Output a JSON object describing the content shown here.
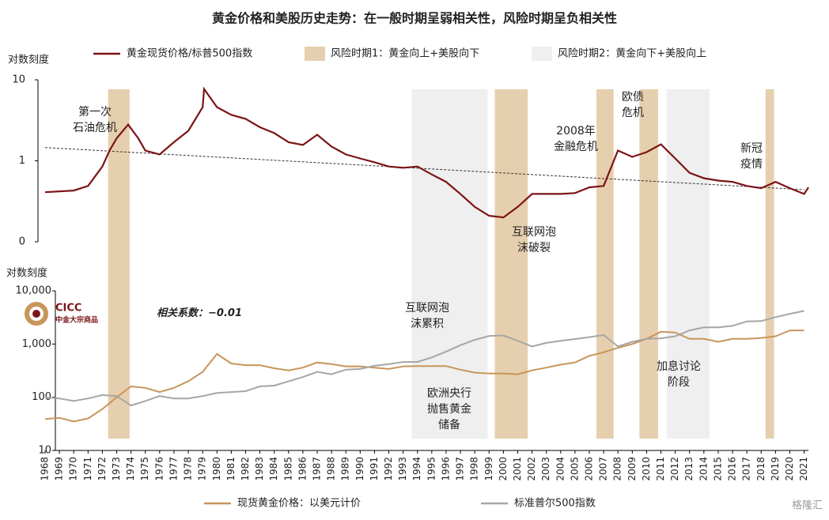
{
  "title": "黄金价格和美股历史走势：在一般时期呈弱相关性，风险时期呈负相关性",
  "logo": {
    "name": "CICC",
    "sub": "中金大宗商品"
  },
  "watermark": "格隆汇",
  "chart_data": [
    {
      "type": "line",
      "ylabel": "对数刻度",
      "log": true,
      "ylim": [
        0.1,
        10
      ],
      "yticks": [
        {
          "value": 0.1,
          "label": "0"
        },
        1,
        10
      ],
      "xlim": [
        1968,
        2021.3
      ],
      "x": [
        1968,
        1970,
        1971,
        1972,
        1972.5,
        1973,
        1973.8,
        1974.5,
        1975,
        1976,
        1977,
        1978,
        1979,
        1979.1,
        1980,
        1981,
        1982,
        1983,
        1984,
        1985,
        1986,
        1987,
        1988,
        1989,
        1990,
        1991,
        1992,
        1993,
        1994,
        1995,
        1996,
        1997,
        1998,
        1999,
        2000,
        2001,
        2002,
        2003,
        2004,
        2005,
        2006,
        2007,
        2008,
        2009,
        2010,
        2011,
        2012,
        2013,
        2014,
        2015,
        2016,
        2017,
        2018,
        2019,
        2020,
        2021,
        2021.3
      ],
      "series": [
        {
          "name": "黄金现货价格/标普500指数",
          "color": "#7b1416",
          "values": [
            0.41,
            0.43,
            0.49,
            0.85,
            1.34,
            1.9,
            2.8,
            1.9,
            1.34,
            1.2,
            1.7,
            2.35,
            4.6,
            7.7,
            4.6,
            3.7,
            3.3,
            2.6,
            2.2,
            1.7,
            1.57,
            2.1,
            1.5,
            1.2,
            1.07,
            0.96,
            0.85,
            0.82,
            0.85,
            0.68,
            0.55,
            0.39,
            0.27,
            0.21,
            0.2,
            0.27,
            0.39,
            0.39,
            0.39,
            0.4,
            0.47,
            0.49,
            1.34,
            1.12,
            1.28,
            1.6,
            1.07,
            0.71,
            0.61,
            0.57,
            0.55,
            0.49,
            0.46,
            0.55,
            0.46,
            0.39,
            0.47
          ]
        }
      ],
      "trend": {
        "x": [
          1968,
          2021
        ],
        "values": [
          1.46,
          0.44
        ],
        "color": "#333333"
      },
      "periods": [
        {
          "name": "风险时期1：黄金向上+美股向下",
          "color": "#e6cfae",
          "ranges": [
            [
              1972.4,
              1973.9
            ],
            [
              1999.4,
              2001.7
            ],
            [
              2006.5,
              2007.7
            ],
            [
              2009.5,
              2010.8
            ],
            [
              2018.3,
              2018.9
            ]
          ]
        },
        {
          "name": "风险时期2：黄金向下+美股向上",
          "color": "#efefef",
          "ranges": [
            [
              1993.6,
              1998.9
            ],
            [
              2011.4,
              2014.4
            ]
          ]
        }
      ],
      "annotations": [
        "第一次\n石油危机",
        "2008年\n金融危机",
        "欧债\n危机",
        "新冠\n疫情",
        "互联网泡\n沫破裂"
      ]
    },
    {
      "type": "line",
      "ylabel": "对数刻度",
      "log": true,
      "ylim": [
        10,
        10000
      ],
      "yticks": [
        10,
        100,
        {
          "value": 1000,
          "label": "1,000"
        },
        {
          "value": 10000,
          "label": "10,000"
        }
      ],
      "xlim": [
        1968,
        2021.3
      ],
      "xticks": [
        1968,
        1969,
        1970,
        1971,
        1972,
        1973,
        1974,
        1975,
        1976,
        1977,
        1978,
        1979,
        1980,
        1981,
        1982,
        1983,
        1984,
        1985,
        1986,
        1987,
        1988,
        1989,
        1990,
        1991,
        1992,
        1993,
        1994,
        1995,
        1996,
        1997,
        1998,
        1999,
        2000,
        2001,
        2002,
        2003,
        2004,
        2005,
        2006,
        2007,
        2008,
        2009,
        2010,
        2011,
        2012,
        2013,
        2014,
        2015,
        2016,
        2017,
        2018,
        2019,
        2020,
        2021
      ],
      "x": [
        1968,
        1969,
        1970,
        1971,
        1972,
        1973,
        1974,
        1975,
        1976,
        1977,
        1978,
        1979,
        1980,
        1981,
        1982,
        1983,
        1984,
        1985,
        1986,
        1987,
        1988,
        1989,
        1990,
        1991,
        1992,
        1993,
        1994,
        1995,
        1996,
        1997,
        1998,
        1999,
        2000,
        2001,
        2002,
        2003,
        2004,
        2005,
        2006,
        2007,
        2008,
        2009,
        2010,
        2011,
        2012,
        2013,
        2014,
        2015,
        2016,
        2017,
        2018,
        2019,
        2020,
        2021
      ],
      "series": [
        {
          "name": "现货黄金价格：以美元计价",
          "color": "#c8955a",
          "values": [
            39,
            41,
            35,
            40,
            60,
            100,
            160,
            150,
            125,
            150,
            200,
            300,
            650,
            430,
            400,
            400,
            350,
            320,
            360,
            450,
            420,
            380,
            380,
            360,
            340,
            380,
            385,
            385,
            385,
            330,
            290,
            280,
            280,
            270,
            320,
            360,
            410,
            450,
            600,
            700,
            850,
            1000,
            1250,
            1700,
            1650,
            1250,
            1250,
            1100,
            1250,
            1250,
            1300,
            1400,
            1800,
            1800
          ]
        },
        {
          "name": "标准普尔500指数",
          "color": "#a6a6a6",
          "values": [
            100,
            95,
            85,
            95,
            110,
            105,
            70,
            85,
            105,
            95,
            95,
            105,
            120,
            125,
            130,
            160,
            165,
            200,
            240,
            300,
            270,
            330,
            340,
            390,
            420,
            460,
            460,
            560,
            720,
            950,
            1200,
            1420,
            1450,
            1150,
            900,
            1050,
            1150,
            1240,
            1350,
            1480,
            900,
            1100,
            1250,
            1280,
            1400,
            1800,
            2050,
            2050,
            2200,
            2650,
            2700,
            3200,
            3700,
            4200
          ]
        }
      ],
      "annotations": [
        "相关系数：−0.01",
        "互联网泡\n沫累积",
        "欧洲央行\n抛售黄金\n储备",
        "加息讨论\n阶段"
      ]
    }
  ]
}
